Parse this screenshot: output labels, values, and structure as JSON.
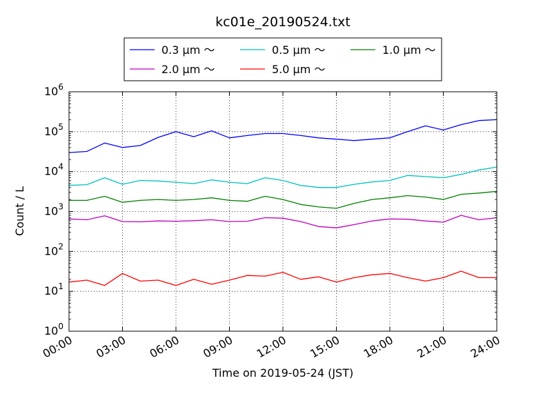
{
  "chart_data": {
    "type": "line",
    "title": "kc01e_20190524.txt",
    "xlabel": "Time on 2019-05-24 (JST)",
    "ylabel": "Count / L",
    "y_scale": "log",
    "ylim_exponents": [
      0,
      6
    ],
    "y_ticks": [
      {
        "base": "10",
        "exp": "0"
      },
      {
        "base": "10",
        "exp": "1"
      },
      {
        "base": "10",
        "exp": "2"
      },
      {
        "base": "10",
        "exp": "3"
      },
      {
        "base": "10",
        "exp": "4"
      },
      {
        "base": "10",
        "exp": "5"
      },
      {
        "base": "10",
        "exp": "6"
      }
    ],
    "x_ticks": [
      "00:00",
      "03:00",
      "06:00",
      "09:00",
      "12:00",
      "15:00",
      "18:00",
      "21:00",
      "24:00"
    ],
    "x_unit": "hours",
    "xlim": [
      0,
      24
    ],
    "grid": true,
    "legend_position": "top-center",
    "x": [
      0,
      1,
      2,
      3,
      4,
      5,
      6,
      7,
      8,
      9,
      10,
      11,
      12,
      13,
      14,
      15,
      16,
      17,
      18,
      19,
      20,
      21,
      22,
      23,
      24
    ],
    "series": [
      {
        "name": "0.3 μm ～",
        "color": "#0000ff",
        "values": [
          30000,
          32000,
          52000,
          40000,
          45000,
          72000,
          100000,
          75000,
          105000,
          70000,
          80000,
          90000,
          90000,
          80000,
          70000,
          65000,
          60000,
          65000,
          70000,
          100000,
          140000,
          110000,
          150000,
          190000,
          200000
        ]
      },
      {
        "name": "0.5 μm ～",
        "color": "#00bfbf",
        "values": [
          4500,
          4700,
          7000,
          4800,
          6000,
          5800,
          5400,
          5000,
          6200,
          5400,
          5000,
          7000,
          6000,
          4500,
          4000,
          4000,
          4800,
          5500,
          6000,
          8000,
          7500,
          7000,
          8500,
          11000,
          13000
        ]
      },
      {
        "name": "1.0 μm ～",
        "color": "#008000",
        "values": [
          1900,
          1900,
          2400,
          1700,
          1900,
          2000,
          1900,
          2000,
          2200,
          1900,
          1800,
          2400,
          2000,
          1500,
          1300,
          1200,
          1600,
          2000,
          2200,
          2500,
          2300,
          2000,
          2700,
          2900,
          3200
        ]
      },
      {
        "name": "2.0 μm ～",
        "color": "#bf00bf",
        "values": [
          650,
          620,
          780,
          560,
          550,
          580,
          570,
          590,
          620,
          560,
          570,
          700,
          680,
          560,
          420,
          390,
          470,
          580,
          650,
          640,
          580,
          540,
          800,
          620,
          700
        ]
      },
      {
        "name": "5.0 μm ～",
        "color": "#ff0000",
        "values": [
          17,
          19,
          14,
          28,
          18,
          19,
          14,
          20,
          15,
          19,
          25,
          24,
          30,
          20,
          23,
          17,
          22,
          26,
          28,
          22,
          18,
          22,
          32,
          22,
          22
        ]
      }
    ]
  }
}
